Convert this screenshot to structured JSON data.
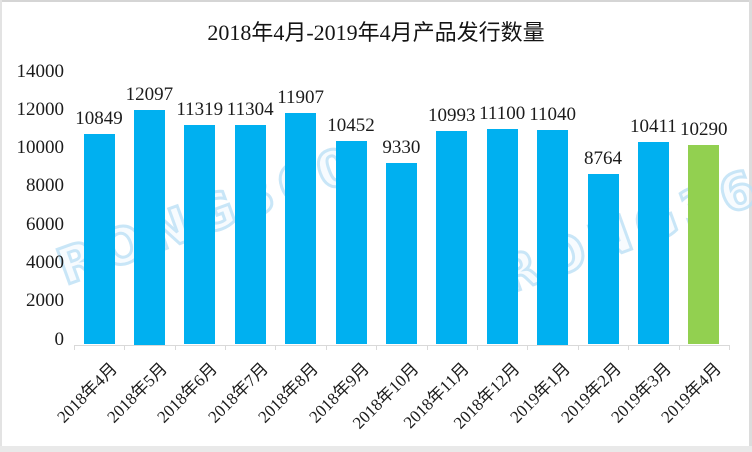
{
  "chart_data": {
    "type": "bar",
    "title": "2018年4月-2019年4月产品发行数量",
    "categories": [
      "2018年4月",
      "2018年5月",
      "2018年6月",
      "2018年7月",
      "2018年8月",
      "2018年9月",
      "2018年10月",
      "2018年11月",
      "2018年12月",
      "2019年1月",
      "2019年2月",
      "2019年3月",
      "2019年4月"
    ],
    "values": [
      10849,
      12097,
      11319,
      11304,
      11907,
      10452,
      9330,
      10993,
      11100,
      11040,
      8764,
      10411,
      10290
    ],
    "data_labels": [
      10849,
      12097,
      11319,
      11304,
      11907,
      10452,
      9330,
      10993,
      11100,
      11040,
      8764,
      10411,
      10290
    ],
    "xlabel": "",
    "ylabel": "",
    "ylim": [
      0,
      14000
    ],
    "yticks": [
      0,
      2000,
      4000,
      6000,
      8000,
      10000,
      12000,
      14000
    ],
    "grid": false,
    "legend": "none",
    "bar_color": "#00b0f0",
    "highlight_color": "#92d050",
    "highlight_index": 12,
    "axis_color": "#d9d9d9",
    "watermark_text": "RONG360"
  }
}
